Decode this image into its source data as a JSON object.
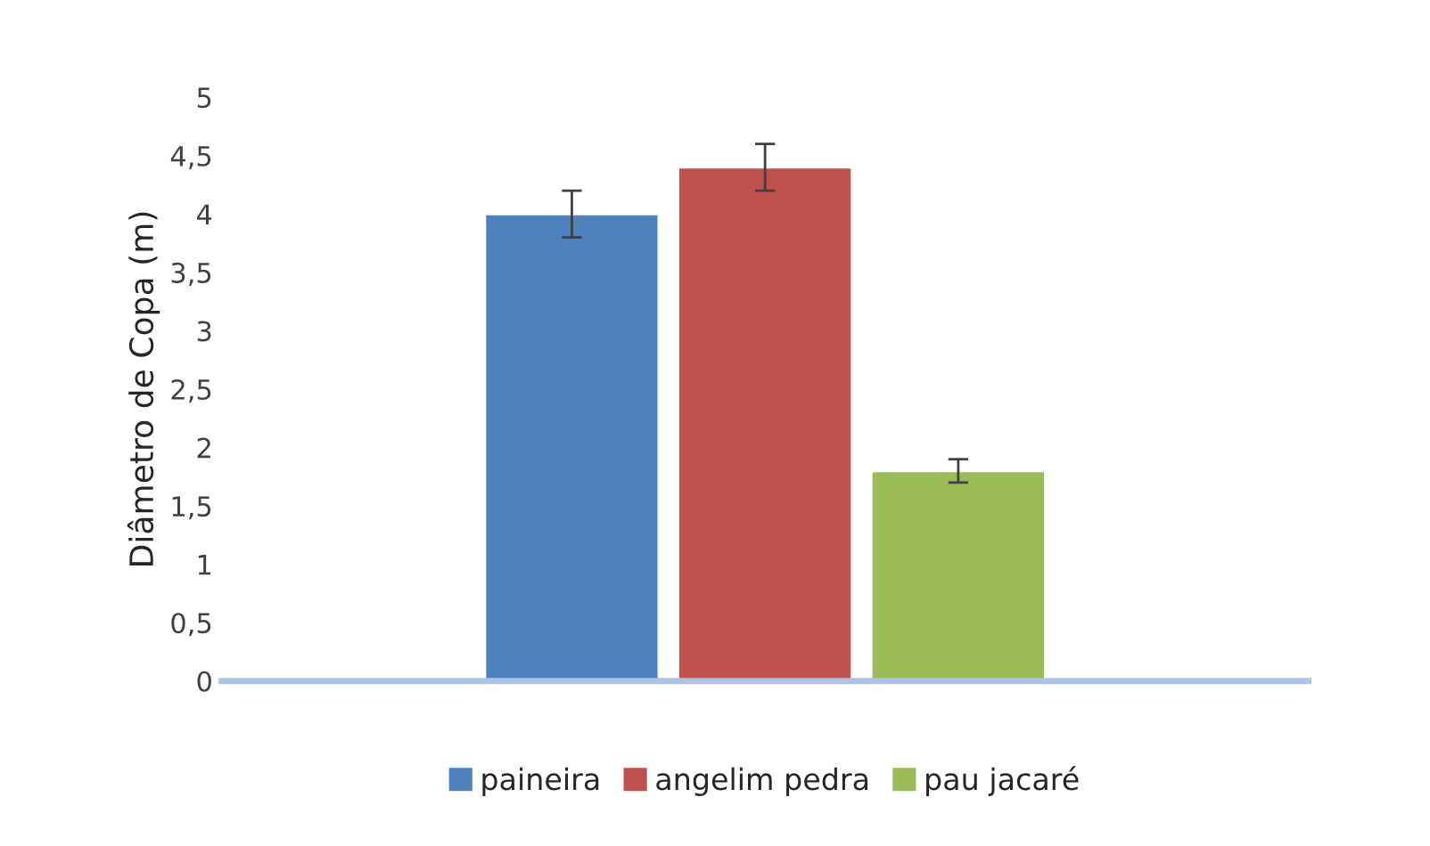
{
  "chart_data": {
    "type": "bar",
    "ylabel": "Diâmetro de Copa (m)",
    "categories": [
      null
    ],
    "series": [
      {
        "name": "paineira",
        "color": "#4f81bd",
        "values": [
          4.0
        ],
        "errors": [
          0.2
        ]
      },
      {
        "name": "angelim pedra",
        "color": "#c0504d",
        "values": [
          4.4
        ],
        "errors": [
          0.2
        ]
      },
      {
        "name": "pau jacaré",
        "color": "#9bbb59",
        "values": [
          1.8
        ],
        "errors": [
          0.1
        ]
      }
    ],
    "ylim": [
      0,
      5
    ],
    "yticks": [
      0,
      {
        "value": 0.5,
        "label": "0,5"
      },
      1,
      {
        "value": 1.5,
        "label": "1,5"
      },
      2,
      {
        "value": 2.5,
        "label": "2,5"
      },
      3,
      {
        "value": 3.5,
        "label": "3,5"
      },
      4,
      {
        "value": 4.5,
        "label": "4,5"
      },
      5
    ],
    "grid": false,
    "legend": "bottom"
  }
}
